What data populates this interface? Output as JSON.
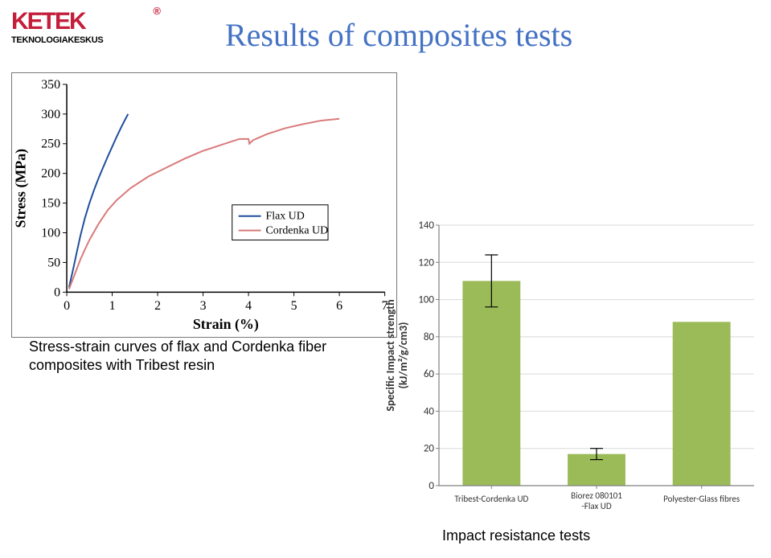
{
  "logo": {
    "main": "KETEK",
    "reg": "®",
    "sub": "TEKNOLOGIAKESKUS"
  },
  "title": "Results of composites tests",
  "caption1": "Stress-strain curves of flax and Cordenka fiber composites with Tribest resin",
  "caption2": "Impact resistance tests",
  "chart1": {
    "type": "line",
    "xlabel": "Strain (%)",
    "ylabel": "Stress (MPa)",
    "xlim": [
      0,
      7
    ],
    "ylim": [
      0,
      350
    ],
    "xtick_step": 1,
    "ytick_step": 50,
    "background_color": "#ffffff",
    "axis_color": "#000000",
    "border_color": "#777777",
    "label_fontsize": 18,
    "tick_fontsize": 16,
    "series": [
      {
        "name": "Flax UD",
        "color": "#1f4e9c",
        "line_width": 2,
        "points": [
          [
            0.05,
            8
          ],
          [
            0.1,
            25
          ],
          [
            0.15,
            42
          ],
          [
            0.2,
            60
          ],
          [
            0.3,
            95
          ],
          [
            0.4,
            125
          ],
          [
            0.5,
            150
          ],
          [
            0.6,
            172
          ],
          [
            0.7,
            192
          ],
          [
            0.8,
            210
          ],
          [
            0.9,
            228
          ],
          [
            1.0,
            245
          ],
          [
            1.1,
            262
          ],
          [
            1.2,
            278
          ],
          [
            1.3,
            293
          ],
          [
            1.35,
            300
          ]
        ]
      },
      {
        "name": "Cordenka UD",
        "color": "#d97a7a",
        "line_width": 2,
        "points": [
          [
            0.05,
            5
          ],
          [
            0.1,
            15
          ],
          [
            0.2,
            35
          ],
          [
            0.3,
            55
          ],
          [
            0.4,
            72
          ],
          [
            0.5,
            88
          ],
          [
            0.7,
            115
          ],
          [
            0.9,
            138
          ],
          [
            1.1,
            155
          ],
          [
            1.4,
            175
          ],
          [
            1.8,
            195
          ],
          [
            2.2,
            210
          ],
          [
            2.6,
            225
          ],
          [
            3.0,
            238
          ],
          [
            3.4,
            248
          ],
          [
            3.8,
            258
          ],
          [
            4.0,
            258
          ],
          [
            4.02,
            250
          ],
          [
            4.1,
            256
          ],
          [
            4.4,
            266
          ],
          [
            4.8,
            276
          ],
          [
            5.2,
            283
          ],
          [
            5.6,
            289
          ],
          [
            6.0,
            292
          ]
        ]
      }
    ],
    "legend": {
      "border_color": "#000000",
      "bg": "#ffffff",
      "fontsize": 14
    }
  },
  "chart2": {
    "type": "bar",
    "ylabel": "Specific Impact strength\n(kJ/m²/g/cm3)",
    "ylim": [
      0,
      140
    ],
    "ytick_step": 20,
    "background_color": "#ffffff",
    "plot_bg": "#ffffff",
    "axis_color": "#808080",
    "grid_color": "#d9d9d9",
    "bar_color": "#9bbb59",
    "bar_width": 0.55,
    "error_color": "#000000",
    "label_fontsize": 14,
    "tick_fontsize": 13,
    "cat_fontsize": 11,
    "categories": [
      "Tribest-Cordenka UD",
      "Biorez 080101 -Flax UD",
      "Polyester-Glass fibres"
    ],
    "values": [
      110,
      17,
      88
    ],
    "errors": [
      14,
      3,
      0
    ]
  }
}
